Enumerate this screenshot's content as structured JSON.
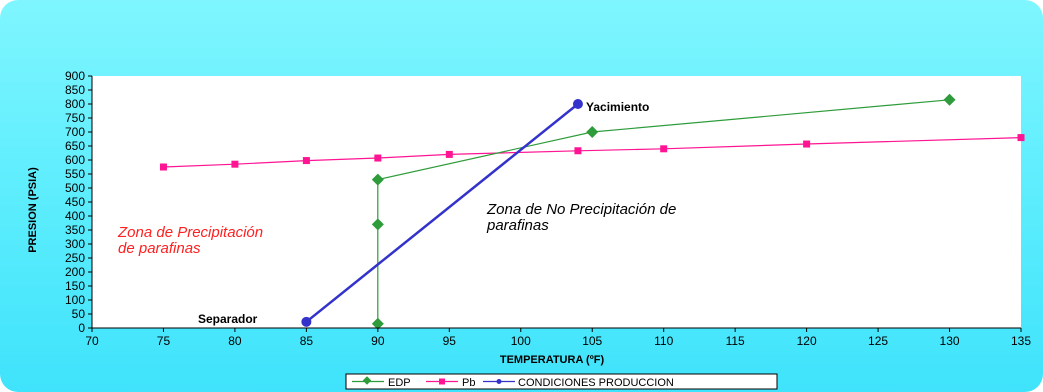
{
  "chart_data": {
    "type": "line",
    "title": "",
    "xlabel": "TEMPERATURA (ºF)",
    "ylabel": "PRESION (PSIA)",
    "xlim": [
      70,
      135
    ],
    "ylim": [
      0,
      900
    ],
    "x_ticks": [
      70,
      75,
      80,
      85,
      90,
      95,
      100,
      105,
      110,
      115,
      120,
      125,
      130,
      135
    ],
    "y_ticks": [
      0,
      50,
      100,
      150,
      200,
      250,
      300,
      350,
      400,
      450,
      500,
      550,
      600,
      650,
      700,
      750,
      800,
      850,
      900
    ],
    "grid": false,
    "legend_position": "bottom",
    "series": [
      {
        "name": "EDP",
        "color": "#2e9c3a",
        "marker": "diamond",
        "points": [
          [
            90,
            15
          ],
          [
            90,
            370
          ],
          [
            90,
            530
          ],
          [
            105,
            700
          ],
          [
            130,
            815
          ]
        ]
      },
      {
        "name": "Pb",
        "color": "#ff1493",
        "marker": "square",
        "points": [
          [
            75,
            575
          ],
          [
            80,
            585
          ],
          [
            85,
            598
          ],
          [
            90,
            607
          ],
          [
            95,
            620
          ],
          [
            104,
            633
          ],
          [
            110,
            640
          ],
          [
            120,
            657
          ],
          [
            135,
            680
          ]
        ]
      },
      {
        "name": "CONDICIONES PRODUCCION",
        "color": "#3333cc",
        "marker": "circle",
        "points": [
          [
            85,
            22
          ],
          [
            104,
            800
          ]
        ]
      }
    ],
    "annotations": [
      {
        "id": "yacimiento",
        "text": "Yacimiento",
        "color": "#000000"
      },
      {
        "id": "separador",
        "text": "Separador",
        "color": "#000000"
      },
      {
        "id": "zona-precipitacion-1",
        "text": "Zona de  Precipitación",
        "color": "#ff2020"
      },
      {
        "id": "zona-precipitacion-2",
        "text": "de parafinas",
        "color": "#ff2020"
      },
      {
        "id": "zona-no-precipitacion-1",
        "text": "Zona de  No  Precipitación de",
        "color": "#000000"
      },
      {
        "id": "zona-no-precipitacion-2",
        "text": "parafinas",
        "color": "#000000"
      }
    ]
  }
}
